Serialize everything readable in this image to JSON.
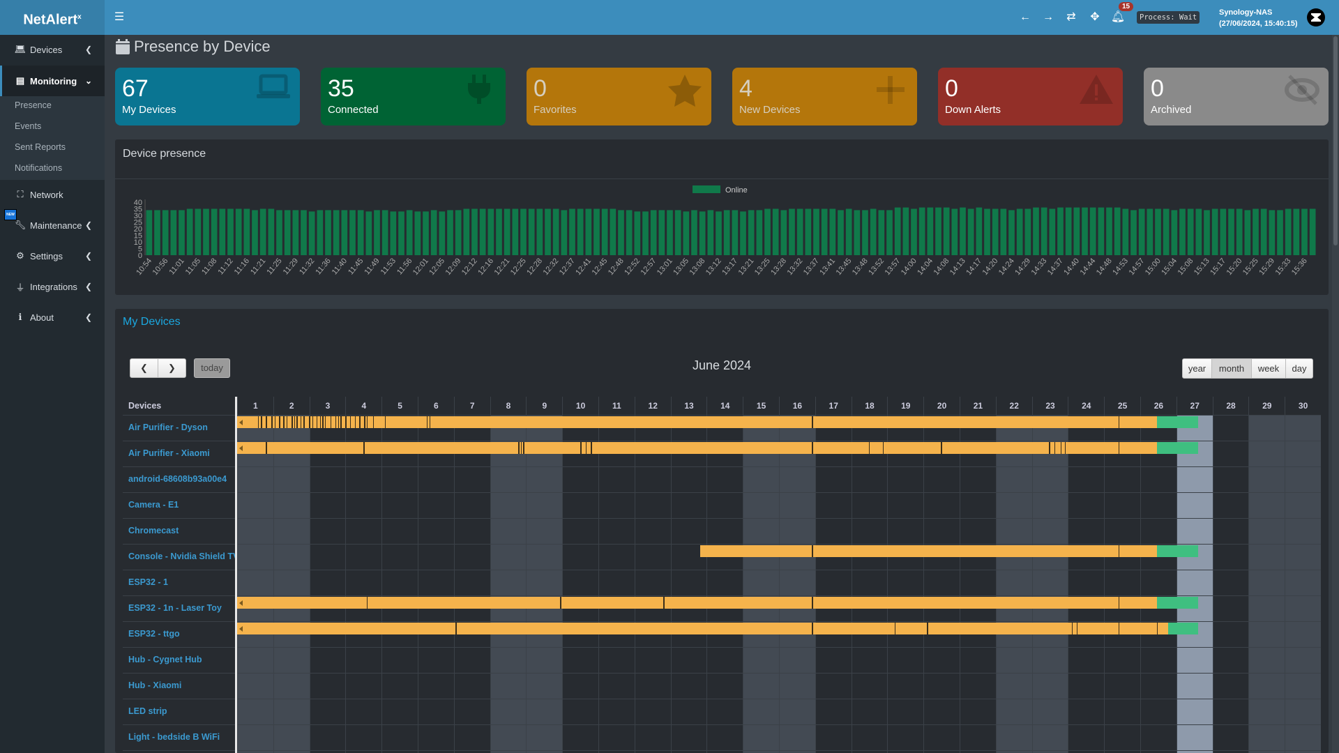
{
  "app": {
    "logo": "NetAlert",
    "logo_sup": "x",
    "menu_icon": "hamburger-icon"
  },
  "topbar": {
    "notifications": "15",
    "process": "Process: Wait",
    "host": "Synology-NAS",
    "datetime": "(27/06/2024, 15:40:15)"
  },
  "sidebar": {
    "items": [
      {
        "label": "Devices",
        "icon": "laptop-icon"
      },
      {
        "label": "Monitoring",
        "icon": "chart-icon",
        "active": true
      },
      {
        "label": "Network",
        "icon": "network-icon"
      },
      {
        "label": "Maintenance",
        "icon": "wrench-icon",
        "badge": "NEW"
      },
      {
        "label": "Settings",
        "icon": "gear-icon"
      },
      {
        "label": "Integrations",
        "icon": "plug-icon"
      },
      {
        "label": "About",
        "icon": "info-icon"
      }
    ],
    "submenu": [
      "Presence",
      "Events",
      "Sent Reports",
      "Notifications"
    ]
  },
  "page": {
    "title": "Presence by Device"
  },
  "cards": [
    {
      "value": "67",
      "label": "My Devices",
      "color": "#0a7592",
      "icon": "laptop-icon"
    },
    {
      "value": "35",
      "label": "Connected",
      "color": "#006334",
      "icon": "plug-icon"
    },
    {
      "value": "0",
      "label": "Favorites",
      "color": "#b4760b",
      "icon": "star-icon"
    },
    {
      "value": "4",
      "label": "New Devices",
      "color": "#b4760b",
      "icon": "plus-icon"
    },
    {
      "value": "0",
      "label": "Down Alerts",
      "color": "#922f28",
      "icon": "warning-icon"
    },
    {
      "value": "0",
      "label": "Archived",
      "color": "#8a8a8a",
      "icon": "eye-slash-icon"
    }
  ],
  "presence": {
    "title": "Device presence"
  },
  "chart_data": {
    "type": "bar",
    "legend": [
      "Online"
    ],
    "legend_position": "top",
    "color": "#10794a",
    "ylim": [
      0,
      40
    ],
    "yticks": [
      0,
      5,
      10,
      15,
      20,
      25,
      30,
      35,
      40
    ],
    "x_labels": [
      "10:54",
      "10:56",
      "11:01",
      "11:05",
      "11:08",
      "11:12",
      "11:16",
      "11:21",
      "11:25",
      "11:29",
      "11:32",
      "11:36",
      "11:40",
      "11:45",
      "11:49",
      "11:53",
      "11:56",
      "12:01",
      "12:05",
      "12:09",
      "12:12",
      "12:16",
      "12:21",
      "12:25",
      "12:28",
      "12:32",
      "12:37",
      "12:41",
      "12:45",
      "12:48",
      "12:52",
      "12:57",
      "13:01",
      "13:05",
      "13:08",
      "13:12",
      "13:17",
      "13:21",
      "13:25",
      "13:28",
      "13:32",
      "13:37",
      "13:41",
      "13:45",
      "13:48",
      "13:52",
      "13:57",
      "14:00",
      "14:04",
      "14:08",
      "14:13",
      "14:17",
      "14:20",
      "14:24",
      "14:29",
      "14:33",
      "14:37",
      "14:40",
      "14:44",
      "14:48",
      "14:53",
      "14:57",
      "15:00",
      "15:04",
      "15:08",
      "15:13",
      "15:17",
      "15:20",
      "15:25",
      "15:29",
      "15:33",
      "15:36"
    ],
    "series": [
      {
        "name": "Online",
        "values": [
          34,
          34,
          34,
          34,
          34,
          35,
          35,
          35,
          35,
          35,
          35,
          35,
          35,
          34,
          35,
          35,
          34,
          34,
          34,
          34,
          33,
          34,
          34,
          34,
          34,
          34,
          34,
          33,
          34,
          34,
          33,
          33,
          34,
          33,
          33,
          34,
          33,
          34,
          34,
          35,
          35,
          35,
          35,
          35,
          35,
          35,
          35,
          35,
          35,
          35,
          35,
          34,
          35,
          35,
          35,
          35,
          35,
          35,
          34,
          34,
          33,
          33,
          34,
          34,
          34,
          34,
          33,
          34,
          33,
          34,
          33,
          34,
          34,
          33,
          34,
          34,
          35,
          35,
          34,
          35,
          35,
          35,
          35,
          35,
          35,
          34,
          35,
          34,
          34,
          35,
          34,
          34,
          36,
          36,
          35,
          36,
          36,
          36,
          36,
          35,
          36,
          35,
          36,
          35,
          35,
          35,
          34,
          35,
          35,
          36,
          36,
          35,
          36,
          36,
          36,
          36,
          36,
          36,
          36,
          36,
          35,
          34,
          35,
          35,
          35,
          35,
          34,
          35,
          35,
          35,
          34,
          35,
          35,
          35,
          35,
          34,
          35,
          35,
          34,
          34,
          35,
          35,
          35,
          35
        ]
      }
    ]
  },
  "devices_section": {
    "title": "My Devices",
    "today": "today",
    "month_title": "June 2024",
    "views": [
      "year",
      "month",
      "week",
      "day"
    ],
    "active_view": "month",
    "column_header": "Devices",
    "days": 30,
    "weekends": [
      1,
      2,
      8,
      9,
      15,
      16,
      22,
      23,
      29,
      30
    ],
    "today_day": 27,
    "colors": {
      "session": "#f5b34c",
      "current": "#3fbf80",
      "weekend": "#434a53",
      "today": "#8e9aab"
    },
    "rows": [
      {
        "name": "Air Purifier - Dyson",
        "start": 1,
        "breaks": [
          1.57,
          1.66,
          1.8,
          1.95,
          2.04,
          2.16,
          2.28,
          2.37,
          2.51,
          2.58,
          2.65,
          2.75,
          2.84,
          2.99,
          3.08,
          3.2,
          3.29,
          3.36,
          3.43,
          3.58,
          3.72,
          3.79,
          3.86,
          4.0,
          4.12,
          4.26,
          4.38,
          4.52,
          4.59,
          4.76,
          5.09,
          6.25,
          6.32,
          16.91,
          25.4
        ],
        "end": 26.46,
        "current_end": 27.6
      },
      {
        "name": "Air Purifier - Xiaomi",
        "start": 1,
        "breaks": [
          1.8,
          4.5,
          8.78,
          8.85,
          8.92,
          10.5,
          10.65,
          10.79,
          16.91,
          18.49,
          18.87,
          20.48,
          23.48,
          23.62,
          23.79,
          23.91,
          25.4
        ],
        "end": 26.46,
        "current_end": 27.6
      },
      {
        "name": "android-68608b93a00e4"
      },
      {
        "name": "Camera - E1"
      },
      {
        "name": "Chromecast"
      },
      {
        "name": "Console - Nvidia Shield TV",
        "start": 13.81,
        "breaks": [
          16.91,
          25.4
        ],
        "end": 26.46,
        "current_end": 27.6
      },
      {
        "name": "ESP32 - 1"
      },
      {
        "name": "ESP32 - 1n - Laser Toy",
        "start": 1,
        "breaks": [
          4.59,
          9.94,
          12.8,
          16.91,
          25.4
        ],
        "end": 26.46,
        "current_end": 27.6
      },
      {
        "name": "ESP32 - ttgo",
        "start": 1,
        "breaks": [
          7.05,
          16.91,
          19.2,
          20.1,
          24.1,
          24.24,
          25.4,
          26.46
        ],
        "end": 26.77,
        "current_end": 27.6
      },
      {
        "name": "Hub - Cygnet Hub"
      },
      {
        "name": "Hub - Xiaomi"
      },
      {
        "name": "LED strip"
      },
      {
        "name": "Light - bedside B WiFi"
      },
      {
        "name": ""
      }
    ]
  }
}
